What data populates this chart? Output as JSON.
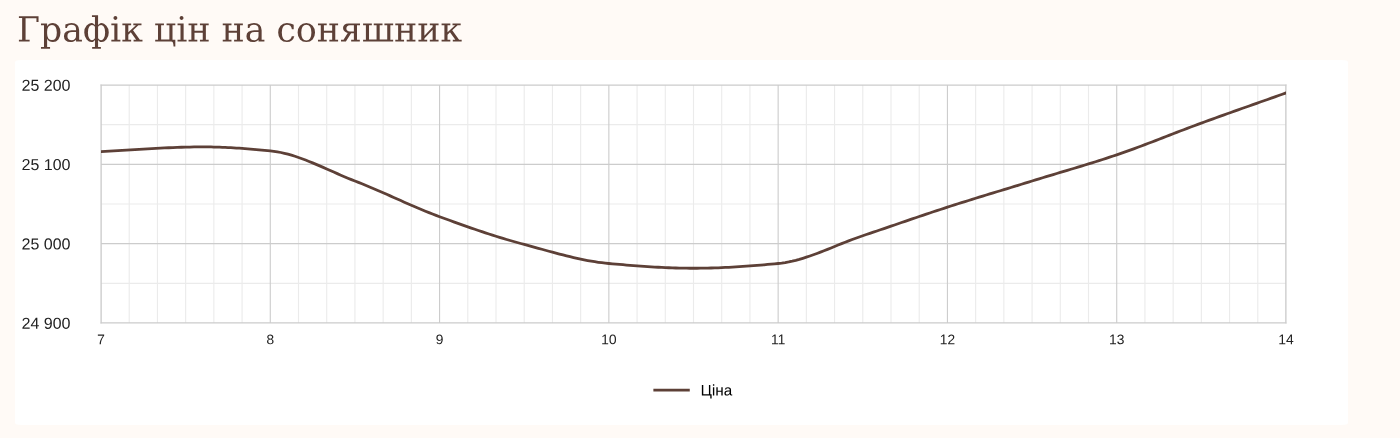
{
  "chart_data": {
    "type": "line",
    "title": "Графік цін на соняшник",
    "x": [
      7,
      7.6,
      8,
      8.5,
      9,
      9.5,
      10,
      10.5,
      11,
      11.5,
      12,
      12.5,
      13,
      13.5,
      14
    ],
    "series": [
      {
        "name": "Ціна",
        "color": "#5d4037",
        "values": [
          25116,
          25122,
          25117,
          25079,
          25034,
          24999,
          24975,
          24969,
          24975,
          25010,
          25046,
          25079,
          25112,
          25152,
          25190
        ]
      }
    ],
    "xlim": [
      7,
      14
    ],
    "xticks": [
      7,
      8,
      9,
      10,
      11,
      12,
      13,
      14
    ],
    "ylim": [
      24900,
      25200
    ],
    "yticks": [
      {
        "value": 24900,
        "label": "24 900"
      },
      {
        "value": 25000,
        "label": "25 000"
      },
      {
        "value": 25100,
        "label": "25 100"
      },
      {
        "value": 25200,
        "label": "25 200"
      }
    ],
    "grid": true,
    "legend": "bottom",
    "marker": "none",
    "line_style": "solid"
  }
}
